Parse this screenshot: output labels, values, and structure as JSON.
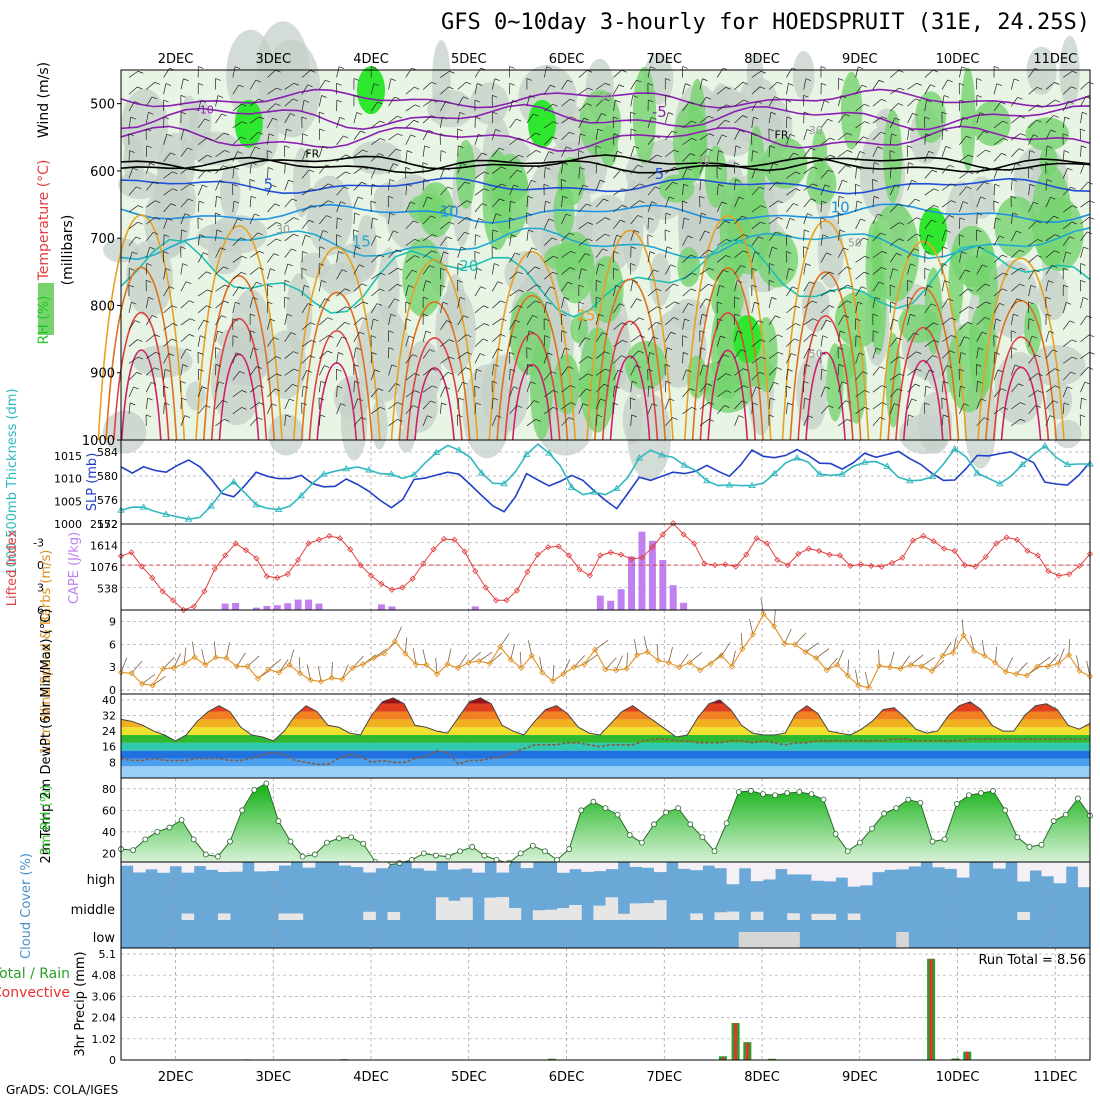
{
  "title": "GFS 0~10day 3-hourly for HOEDSPRUIT (31E, 24.25S)",
  "footer": "GrADS: COLA/IGES",
  "colors": {
    "rh_light": "#e8f4e4",
    "rh_grey": "#c4d0c8",
    "rh_green": "#76d36e",
    "rh_bright": "#2fe72f",
    "slp": "#2040c8",
    "thickness": "#30b8c0",
    "lifted": "#e04040",
    "cape": "#c080f0",
    "wind10": "#e09020",
    "barb": "#806040",
    "rh2m": "#28c428",
    "cloud": "#6aa8d8",
    "precip_total": "#28a028",
    "precip_conv": "#e83030"
  },
  "chart_data": [
    {
      "type": "heatmap",
      "name": "upper-air",
      "ylabel_parts": [
        "RH (%)",
        "Temperature (°C)",
        "Wind (m/s)",
        "(millibars)"
      ],
      "ylim": [
        1000,
        450
      ],
      "yticks": [
        500,
        600,
        700,
        800,
        900,
        1000
      ],
      "x_ticklabels": [
        "2DEC",
        "3DEC",
        "4DEC",
        "5DEC",
        "6DEC",
        "7DEC",
        "8DEC",
        "9DEC",
        "10DEC",
        "11DEC"
      ],
      "contour_labels": [
        {
          "text": "-10",
          "p": 515,
          "day": 2.3
        },
        {
          "text": "-5",
          "p": 520,
          "day": 6.95
        },
        {
          "text": "FR",
          "p": 580,
          "day": 3.4
        },
        {
          "text": "FR",
          "p": 552,
          "day": 8.2
        },
        {
          "text": "5",
          "p": 628,
          "day": 2.95
        },
        {
          "text": "5",
          "p": 612,
          "day": 6.95
        },
        {
          "text": "10",
          "p": 668,
          "day": 4.8
        },
        {
          "text": "10",
          "p": 662,
          "day": 8.8
        },
        {
          "text": "15",
          "p": 712,
          "day": 3.9
        },
        {
          "text": "20",
          "p": 749,
          "day": 5.0
        },
        {
          "text": "25",
          "p": 822,
          "day": 6.2
        },
        {
          "text": "30",
          "p": 590,
          "day": 7.4
        },
        {
          "text": "30",
          "p": 545,
          "day": 8.55
        },
        {
          "text": "50",
          "p": 495,
          "day": 6.4
        },
        {
          "text": "30",
          "p": 692,
          "day": 3.1
        },
        {
          "text": "50",
          "p": 712,
          "day": 8.95
        },
        {
          "text": "50",
          "p": 877,
          "day": 8.55
        }
      ]
    },
    {
      "type": "line",
      "name": "slp-thickness",
      "ylabel_left": "1000-500mb Thickness (dm)",
      "ylabel_right": "SLP (mb)",
      "left_ticks": [
        572,
        576,
        580,
        584
      ],
      "right_ticks": [
        1000,
        1005,
        1010,
        1015
      ],
      "left_ylim": [
        572,
        586
      ],
      "right_ylim": [
        1000,
        1018.5
      ],
      "series": [
        {
          "axis": "right",
          "values": [
            1012.6,
            1011.2,
            1012.6,
            1011.8,
            1011.4,
            1012.9,
            1014.1,
            1012.6,
            1009.9,
            1006.7,
            1006.0,
            1008.5,
            1011.4,
            1010.5,
            1010.0,
            1010.0,
            1010.7,
            1008.9,
            1008.2,
            1008.3,
            1009.9,
            1008.7,
            1007.2,
            1005.2,
            1003.6,
            1005.4,
            1009.8,
            1010.1,
            1010.8,
            1011.4,
            1011.0,
            1008.7,
            1006.3,
            1004.0,
            1002.7,
            1006.0,
            1011.1,
            1009.7,
            1008.4,
            1009.4,
            1010.7,
            1009.6,
            1007.3,
            1005.2,
            1003.4,
            1006.8,
            1010.3,
            1009.6,
            1010.5,
            1011.4,
            1011.1,
            1011.6,
            1012.9,
            1011.6,
            1010.5,
            1013.0,
            1016.3,
            1014.9,
            1014.6,
            1015.1,
            1016.4,
            1015.1,
            1013.4,
            1013.3,
            1012.1,
            1013.5,
            1015.6,
            1014.7,
            1015.3,
            1016.0,
            1014.4,
            1013.1,
            1011.1,
            1009.6,
            1009.7,
            1012.2,
            1015.1,
            1015.0,
            1015.5,
            1015.9,
            1014.7,
            1013.5,
            1009.2,
            1008.8,
            1008.6,
            1010.7,
            1013.6
          ]
        },
        {
          "axis": "left",
          "values": [
            574.3,
            574.8,
            574.8,
            574.1,
            573.6,
            573.2,
            572.8,
            573.1,
            575.0,
            577.5,
            579.0,
            577.2,
            575.2,
            574.6,
            574.4,
            575.0,
            576.7,
            578.8,
            580.3,
            580.8,
            581.2,
            581.5,
            581.0,
            580.4,
            580.3,
            579.6,
            580.2,
            582.2,
            583.9,
            585.1,
            584.3,
            583.1,
            580.5,
            578.8,
            578.7,
            580.7,
            583.6,
            585.3,
            583.8,
            581.7,
            578.1,
            576.9,
            577.3,
            576.9,
            577.9,
            579.8,
            583.0,
            584.3,
            583.5,
            583.1,
            581.8,
            580.9,
            579.2,
            578.4,
            578.5,
            578.4,
            578.4,
            578.8,
            580.4,
            582.2,
            583.0,
            582.3,
            580.3,
            580.1,
            580.3,
            581.6,
            582.3,
            582.4,
            581.6,
            579.8,
            579.2,
            579.3,
            579.9,
            582.0,
            584.5,
            583.2,
            580.5,
            579.6,
            578.7,
            580.0,
            581.9,
            583.6,
            585.0,
            583.1,
            581.9,
            582.0,
            582.0
          ]
        }
      ]
    },
    {
      "type": "bar",
      "name": "lifted-cape",
      "ylabel_left": "Lifted Index",
      "ylabel_right": "CAPE (J/kg)",
      "left_ticks": [
        "-3",
        "0",
        "3",
        "6"
      ],
      "right_ticks": [
        "538",
        "1076",
        "1614",
        "2152"
      ],
      "left_ylim": [
        6,
        -5.5
      ],
      "right_ylim": [
        0,
        2152
      ],
      "lifted_index": [
        -1.2,
        -1.7,
        0.2,
        1.7,
        3.5,
        4.7,
        6.1,
        5.5,
        3.5,
        0.5,
        -1.3,
        -2.9,
        -2.0,
        -0.9,
        1.5,
        1.7,
        1.2,
        -0.7,
        -2.9,
        -3.4,
        -3.9,
        -3.6,
        -2.1,
        0.0,
        1.4,
        2.5,
        3.3,
        3.0,
        1.8,
        -0.2,
        -2.1,
        -3.5,
        -3.4,
        -1.8,
        0.8,
        3.0,
        4.7,
        4.7,
        3.4,
        0.9,
        -1.4,
        -2.4,
        -2.5,
        -1.3,
        0.6,
        1.4,
        -1.3,
        -1.7,
        -1.4,
        -0.8,
        -1.0,
        -2.4,
        -4.1,
        -5.6,
        -4.1,
        -2.9,
        -0.2,
        0.0,
        -0.1,
        0.2,
        -1.4,
        -3.6,
        -2.9,
        -0.7,
        0.0,
        -1.5,
        -2.2,
        -1.9,
        -1.4,
        -1.3,
        0.1,
        -0.1,
        0.1,
        0.2,
        -0.3,
        -1.0,
        -3.3,
        -3.9,
        -3.2,
        -2.2,
        -1.9,
        0.0,
        0.2,
        -1.1,
        -2.9,
        -3.7,
        -3.4,
        -1.9,
        -1.3,
        0.8,
        1.4,
        1.2,
        0.1,
        -1.5
      ],
      "cape": [
        0,
        0,
        0,
        0,
        0,
        0,
        0,
        0,
        0,
        0,
        160,
        175,
        0,
        60,
        100,
        120,
        170,
        260,
        260,
        160,
        0,
        0,
        0,
        0,
        0,
        140,
        90,
        0,
        0,
        0,
        0,
        0,
        0,
        0,
        90,
        0,
        0,
        0,
        0,
        0,
        0,
        0,
        0,
        0,
        0,
        0,
        360,
        230,
        520,
        1340,
        1960,
        1730,
        1250,
        620,
        180,
        0,
        0,
        0,
        0,
        0,
        0,
        0,
        0,
        0,
        0,
        0,
        0,
        0,
        0,
        0,
        0,
        0,
        0,
        0,
        0,
        0,
        0,
        0,
        0,
        0,
        0,
        0,
        0,
        0,
        0,
        0,
        0,
        0,
        0,
        0,
        0,
        0,
        0,
        0
      ]
    },
    {
      "type": "line",
      "name": "wind10m",
      "ylabel": "10m Wind Speed & Barbs (m/s)",
      "ylim": [
        0,
        10
      ],
      "yticks": [
        0,
        3,
        6,
        9
      ],
      "values": [
        2.3,
        2.2,
        0.8,
        0.6,
        2.8,
        2.9,
        3.5,
        4.3,
        3.3,
        4.3,
        4.2,
        3.1,
        3.1,
        1.5,
        2.7,
        2.3,
        3.3,
        2.2,
        1.3,
        1.1,
        1.6,
        1.4,
        2.9,
        3.4,
        4.2,
        4.8,
        6.4,
        4.8,
        3.4,
        3.3,
        2.1,
        3.4,
        2.9,
        3.6,
        3.8,
        3.5,
        5.7,
        4.0,
        2.9,
        4.5,
        2.3,
        1.2,
        2.1,
        3.0,
        3.4,
        5.3,
        2.7,
        2.6,
        2.8,
        4.6,
        5.0,
        3.9,
        3.6,
        3.0,
        3.6,
        2.6,
        3.5,
        4.5,
        3.1,
        5.4,
        7.3,
        10.0,
        8.4,
        6.1,
        6.0,
        5.0,
        4.2,
        2.6,
        3.3,
        1.9,
        0.6,
        0.3,
        3.2,
        3.0,
        2.8,
        3.3,
        3.1,
        2.5,
        4.5,
        4.9,
        7.2,
        5.1,
        4.5,
        3.6,
        2.4,
        2.1,
        1.9,
        3.1,
        3.1,
        3.5,
        4.6,
        2.5,
        1.8
      ]
    },
    {
      "type": "area",
      "name": "temp2m",
      "ylabel": "2m Temp 2m DewPt (6hr Min/Max) (°C)",
      "ylim": [
        0,
        43
      ],
      "yticks": [
        8,
        16,
        24,
        32,
        40
      ],
      "temp": [
        30,
        29,
        27,
        24,
        22,
        19,
        22,
        29,
        34,
        37,
        34,
        26,
        22,
        21,
        19,
        24,
        32,
        37,
        34,
        27,
        26,
        23,
        22,
        32,
        39,
        41,
        38,
        27,
        26,
        24,
        23,
        31,
        39,
        41,
        38,
        27,
        24,
        22,
        29,
        35,
        37,
        33,
        26,
        23,
        22,
        28,
        34,
        37,
        33,
        29,
        25,
        21,
        22,
        31,
        38,
        40,
        35,
        27,
        23,
        22,
        22,
        23,
        33,
        37,
        33,
        24,
        23,
        22,
        25,
        29,
        35,
        36,
        31,
        25,
        23,
        24,
        32,
        37,
        39,
        35,
        27,
        24,
        24,
        32,
        37,
        38,
        35,
        27,
        25,
        28
      ],
      "dewpt": [
        10,
        9,
        9,
        10,
        9,
        9,
        9,
        10,
        10,
        10,
        9,
        9,
        10,
        12,
        13,
        12,
        9,
        8,
        7,
        7,
        10,
        12,
        11,
        8,
        9,
        8,
        8,
        10,
        11,
        14,
        13,
        7,
        9,
        9,
        10,
        11,
        13,
        15,
        17,
        17,
        17,
        18,
        18,
        17,
        16,
        17,
        17,
        17,
        19,
        20,
        20,
        19,
        19,
        18,
        18,
        18,
        19,
        19,
        18,
        19,
        18,
        17,
        18,
        18,
        19,
        19,
        19,
        19,
        19,
        19,
        19,
        20,
        20,
        19,
        19,
        19,
        19,
        19,
        20,
        20,
        20,
        20,
        20,
        20,
        20,
        20,
        20,
        20,
        20,
        20
      ]
    },
    {
      "type": "area",
      "name": "rh2m",
      "ylabel": "2m RH (%)",
      "ylim": [
        12,
        90
      ],
      "yticks": [
        20,
        40,
        60,
        80
      ],
      "values": [
        24,
        23,
        33,
        40,
        44,
        51,
        33,
        19,
        17,
        31,
        60,
        79,
        85,
        50,
        31,
        17,
        19,
        30,
        34,
        35,
        29,
        12,
        9,
        11,
        14,
        20,
        18,
        17,
        22,
        26,
        18,
        14,
        11,
        20,
        27,
        22,
        14,
        24,
        60,
        68,
        62,
        56,
        37,
        30,
        47,
        58,
        62,
        47,
        35,
        22,
        48,
        77,
        78,
        75,
        74,
        76,
        77,
        75,
        70,
        38,
        22,
        30,
        43,
        57,
        62,
        70,
        67,
        31,
        33,
        66,
        74,
        76,
        78,
        60,
        35,
        26,
        28,
        50,
        56,
        71,
        55
      ]
    },
    {
      "type": "heatmap",
      "name": "cloud-cover",
      "ylabel": "Cloud Cover (%)",
      "levels": [
        "high",
        "middle",
        "low"
      ]
    },
    {
      "type": "bar",
      "name": "precip3hr",
      "ylabel": "3hr Precip (mm)",
      "legend_label": "Total / Rain Convective",
      "annotation": "Run Total = 8.56",
      "ylim": [
        0,
        5.1
      ],
      "yticks": [
        "0",
        "1.02",
        "2.04",
        "3.06",
        "4.08",
        "5.1"
      ],
      "bars": [
        {
          "day": 2.73,
          "total": 0.03,
          "conv": 0.02
        },
        {
          "day": 3.73,
          "total": 0.04,
          "conv": 0.02
        },
        {
          "day": 5.85,
          "total": 0.06,
          "conv": 0.04
        },
        {
          "day": 7.6,
          "total": 0.18,
          "conv": 0.12
        },
        {
          "day": 7.73,
          "total": 1.78,
          "conv": 1.78
        },
        {
          "day": 7.85,
          "total": 0.86,
          "conv": 0.82
        },
        {
          "day": 8.1,
          "total": 0.06,
          "conv": 0.04
        },
        {
          "day": 9.73,
          "total": 4.87,
          "conv": 4.87
        },
        {
          "day": 9.98,
          "total": 0.07,
          "conv": 0.04
        },
        {
          "day": 10.1,
          "total": 0.4,
          "conv": 0.4
        }
      ]
    }
  ]
}
